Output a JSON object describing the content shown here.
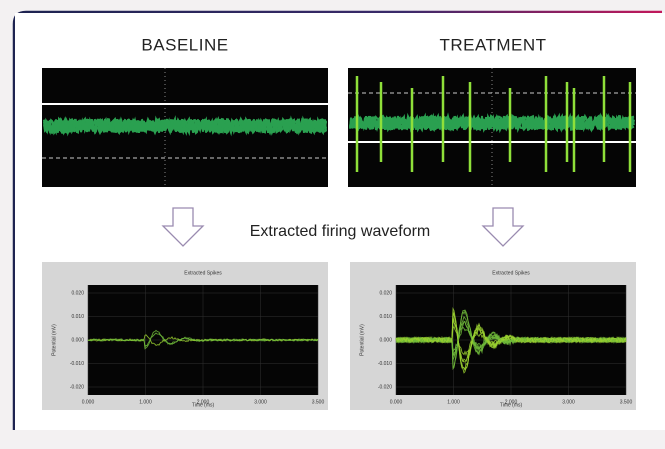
{
  "panels": [
    {
      "label": "BASELINE",
      "plot": {
        "title": "Extracted Spikes",
        "y_label": "Potential (mV)",
        "x_label": "Time (ms)",
        "yticks": [
          "0.020",
          "0.010",
          "0.000",
          "-0.010",
          "-0.020"
        ],
        "xticks": [
          "0.000",
          "1.000",
          "2.000",
          "3.000",
          "3.500"
        ]
      }
    },
    {
      "label": "TREATMENT",
      "plot": {
        "title": "Extracted Spikes",
        "y_label": "Potential (mV)",
        "x_label": "Time (ms)",
        "yticks": [
          "0.020",
          "0.010",
          "0.000",
          "-0.010",
          "-0.020"
        ],
        "xticks": [
          "0.000",
          "1.000",
          "2.000",
          "3.000",
          "3.500"
        ]
      }
    }
  ],
  "caption": "Extracted firing waveform"
}
